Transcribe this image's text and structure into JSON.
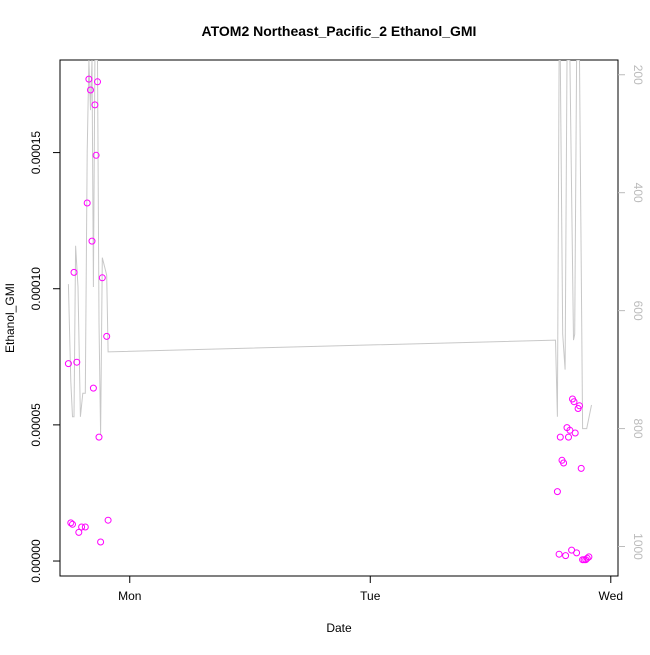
{
  "chart_data": {
    "type": "scatter",
    "title": "ATOM2 Northeast_Pacific_2 Ethanol_GMI",
    "xlabel": "Date",
    "ylabel": "Ethanol_GMI",
    "x_ticks": [
      {
        "label": "Mon",
        "value": 1.0
      },
      {
        "label": "Tue",
        "value": 2.0
      },
      {
        "label": "Wed",
        "value": 3.0
      }
    ],
    "xlim": [
      0.71,
      3.03
    ],
    "ylim": [
      -5.5e-06,
      0.000184
    ],
    "y_ticks": [
      {
        "label": "0.00000",
        "value": 0.0
      },
      {
        "label": "0.00005",
        "value": 5e-05
      },
      {
        "label": "0.00010",
        "value": 0.0001
      },
      {
        "label": "0.00015",
        "value": 0.00015
      }
    ],
    "right_axis": {
      "description": "pressure / altitude scale (inverted), drawn in grey",
      "range": [
        1050,
        175
      ],
      "ticks": [
        {
          "label": "200",
          "value": 200
        },
        {
          "label": "400",
          "value": 400
        },
        {
          "label": "600",
          "value": 600
        },
        {
          "label": "800",
          "value": 800
        },
        {
          "label": "1000",
          "value": 1000
        }
      ]
    },
    "grid": false,
    "series": [
      {
        "style": "points",
        "color": "#ff00ff",
        "points": [
          [
            0.745,
            7.25e-05
          ],
          [
            0.755,
            1.4e-05
          ],
          [
            0.762,
            1.35e-05
          ],
          [
            0.768,
            0.000106
          ],
          [
            0.78,
            7.3e-05
          ],
          [
            0.788,
            1.05e-05
          ],
          [
            0.8,
            1.25e-05
          ],
          [
            0.815,
            1.25e-05
          ],
          [
            0.823,
            0.0001315
          ],
          [
            0.83,
            0.000177
          ],
          [
            0.837,
            0.000173
          ],
          [
            0.843,
            0.0001175
          ],
          [
            0.849,
            6.35e-05
          ],
          [
            0.855,
            0.0001675
          ],
          [
            0.86,
            0.000149
          ],
          [
            0.866,
            0.000176
          ],
          [
            0.872,
            4.55e-05
          ],
          [
            0.879,
            7e-06
          ],
          [
            0.886,
            0.000104
          ],
          [
            0.904,
            8.25e-05
          ],
          [
            0.91,
            1.5e-05
          ],
          [
            2.778,
            2.55e-05
          ],
          [
            2.785,
            2.5e-06
          ],
          [
            2.79,
            4.55e-05
          ],
          [
            2.797,
            3.7e-05
          ],
          [
            2.804,
            3.6e-05
          ],
          [
            2.812,
            2e-06
          ],
          [
            2.818,
            4.9e-05
          ],
          [
            2.824,
            4.55e-05
          ],
          [
            2.83,
            4.8e-05
          ],
          [
            2.837,
            4e-06
          ],
          [
            2.841,
            5.95e-05
          ],
          [
            2.847,
            5.85e-05
          ],
          [
            2.852,
            4.7e-05
          ],
          [
            2.858,
            3e-06
          ],
          [
            2.864,
            5.6e-05
          ],
          [
            2.87,
            5.7e-05
          ],
          [
            2.877,
            3.4e-05
          ],
          [
            2.883,
            5e-07
          ],
          [
            2.889,
            5e-07
          ],
          [
            2.896,
            5e-07
          ],
          [
            2.902,
            1e-06
          ],
          [
            2.909,
            1.5e-06
          ]
        ]
      },
      {
        "style": "line",
        "color": "#c8c8c8",
        "axis": "right",
        "points": [
          [
            0.745,
            555
          ],
          [
            0.755,
            720
          ],
          [
            0.762,
            780
          ],
          [
            0.768,
            780
          ],
          [
            0.775,
            490
          ],
          [
            0.785,
            560
          ],
          [
            0.795,
            780
          ],
          [
            0.805,
            740
          ],
          [
            0.815,
            740
          ],
          [
            0.823,
            330
          ],
          [
            0.83,
            175
          ],
          [
            0.837,
            260
          ],
          [
            0.843,
            175
          ],
          [
            0.849,
            560
          ],
          [
            0.855,
            175
          ],
          [
            0.866,
            175
          ],
          [
            0.872,
            620
          ],
          [
            0.879,
            810
          ],
          [
            0.886,
            510
          ],
          [
            0.904,
            540
          ],
          [
            0.91,
            670
          ],
          [
            2.77,
            650
          ],
          [
            2.778,
            780
          ],
          [
            2.785,
            175
          ],
          [
            2.79,
            175
          ],
          [
            2.8,
            640
          ],
          [
            2.81,
            700
          ],
          [
            2.818,
            175
          ],
          [
            2.83,
            175
          ],
          [
            2.845,
            650
          ],
          [
            2.85,
            640
          ],
          [
            2.858,
            175
          ],
          [
            2.87,
            175
          ],
          [
            2.883,
            800
          ],
          [
            2.892,
            800
          ],
          [
            2.9,
            800
          ],
          [
            2.91,
            780
          ],
          [
            2.92,
            760
          ]
        ]
      }
    ]
  }
}
